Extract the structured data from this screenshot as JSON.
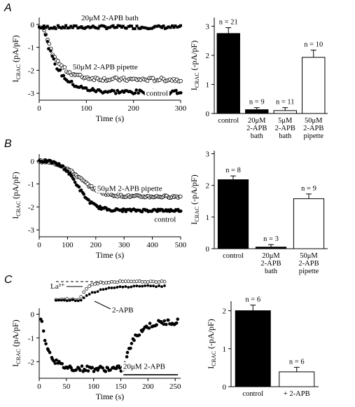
{
  "panels": [
    {
      "letter": "A"
    },
    {
      "letter": "B"
    },
    {
      "letter": "C"
    }
  ],
  "chart_data": [
    {
      "id": "A-trace",
      "type": "scatter",
      "xlabel": "Time (s)",
      "ylabel_main": "I",
      "ylabel_sub": "CRAC",
      "ylabel_unit": " (pA/pF)",
      "xlim": [
        0,
        300
      ],
      "ylim": [
        -3.3,
        0.3
      ],
      "xticks": [
        0,
        100,
        200,
        300
      ],
      "yticks": [
        0,
        -1,
        -2,
        -3
      ],
      "tick_labels_x": [
        "0",
        "100",
        "200",
        "300"
      ],
      "tick_labels_y": [
        "0",
        "-1",
        "-2",
        "-3"
      ],
      "series": [
        {
          "name": "20μM 2-APB bath",
          "marker": "square",
          "model": {
            "kind": "flat",
            "t0": 0,
            "t1": 300,
            "level": -0.12,
            "noise": 0.07,
            "n": 85
          }
        },
        {
          "name": "50μM 2-APB pipette",
          "marker": "open-circle",
          "model": {
            "kind": "exp",
            "t0": 10,
            "t1": 300,
            "start": -0.2,
            "end": -2.4,
            "tau": 28,
            "noise": 0.08,
            "n": 80
          }
        },
        {
          "name": "control",
          "marker": "filled-circle",
          "model": {
            "kind": "exp",
            "t0": 10,
            "t1": 300,
            "start": -0.2,
            "end": -2.95,
            "tau": 30,
            "noise": 0.09,
            "n": 85
          }
        }
      ],
      "annotations": [
        {
          "text": "20μM 2-APB bath",
          "x": 150,
          "y": 0.18
        },
        {
          "text": "50μM 2-APB pipette",
          "x": 140,
          "y": -1.95
        },
        {
          "text": "control",
          "x": 250,
          "y": -3.1
        }
      ]
    },
    {
      "id": "A-bar",
      "type": "bar",
      "ylabel_main": "I",
      "ylabel_sub": "CRAC",
      "ylabel_unit": " (-pA/pF)",
      "ylim": [
        0,
        3.3
      ],
      "yticks": [
        0,
        1,
        2,
        3
      ],
      "tick_labels_y": [
        "0",
        "1",
        "2",
        "3"
      ],
      "categories": [
        "control",
        "20μM 2-APB bath",
        "5μM 2-APB bath",
        "50μM 2-APB pipette"
      ],
      "category_lines": [
        [
          "control"
        ],
        [
          "20μM",
          "2-APB",
          "bath"
        ],
        [
          "5μM",
          "2-APB",
          "bath"
        ],
        [
          "50μM",
          "2-APB",
          "pipette"
        ]
      ],
      "values": [
        2.75,
        0.13,
        0.1,
        1.93
      ],
      "errors": [
        0.2,
        0.07,
        0.1,
        0.25
      ],
      "fills": [
        "#000000",
        "#000000",
        "#ffffff",
        "#ffffff"
      ],
      "n_labels": [
        "n = 21",
        "n = 9",
        "n = 11",
        "n = 10"
      ]
    },
    {
      "id": "B-trace",
      "type": "scatter",
      "xlabel": "Time (s)",
      "ylabel_main": "I",
      "ylabel_sub": "CRAC",
      "ylabel_unit": " (pA/pF)",
      "xlim": [
        0,
        500
      ],
      "ylim": [
        -3.3,
        0.3
      ],
      "xticks": [
        0,
        100,
        200,
        300,
        400,
        500
      ],
      "yticks": [
        0,
        -1,
        -2,
        -3
      ],
      "tick_labels_x": [
        "0",
        "100",
        "200",
        "300",
        "400",
        "500"
      ],
      "tick_labels_y": [
        "0",
        "-1",
        "-2",
        "-3"
      ],
      "series": [
        {
          "name": "50μM 2-APB pipette",
          "marker": "open-circle",
          "model": {
            "kind": "sig",
            "t0": 0,
            "t1": 500,
            "start": 0.03,
            "end": -1.55,
            "mid": 145,
            "k": 38,
            "noise": 0.05,
            "n": 115
          }
        },
        {
          "name": "control",
          "marker": "filled-circle",
          "model": {
            "kind": "sig",
            "t0": 0,
            "t1": 500,
            "start": 0.03,
            "end": -2.15,
            "mid": 135,
            "k": 28,
            "noise": 0.06,
            "n": 115
          }
        }
      ],
      "annotations": [
        {
          "text": "50μM 2-APB pipette",
          "x": 320,
          "y": -1.3
        },
        {
          "text": "control",
          "x": 445,
          "y": -2.65
        }
      ]
    },
    {
      "id": "B-bar",
      "type": "bar",
      "ylabel_main": "I",
      "ylabel_sub": "CRAC",
      "ylabel_unit": " (-pA/pF)",
      "ylim": [
        0,
        3.1
      ],
      "yticks": [
        0,
        1,
        2,
        3
      ],
      "tick_labels_y": [
        "0",
        "1",
        "2",
        "3"
      ],
      "categories": [
        "control",
        "20μM 2-APB bath",
        "50μM 2-APB pipette"
      ],
      "category_lines": [
        [
          "control"
        ],
        [
          "20μM",
          "2-APB",
          "bath"
        ],
        [
          "50μM",
          "2-APB",
          "pipette"
        ]
      ],
      "values": [
        2.18,
        0.05,
        1.58
      ],
      "errors": [
        0.12,
        0.08,
        0.15
      ],
      "fills": [
        "#000000",
        "#000000",
        "#ffffff"
      ],
      "n_labels": [
        "n = 8",
        "n = 3",
        "n = 9"
      ]
    },
    {
      "id": "C-trace",
      "type": "scatter",
      "xlabel": "Time (s)",
      "ylabel_main": "I",
      "ylabel_sub": "CRAC",
      "ylabel_unit": " (pA/pF)",
      "xlim": [
        0,
        260
      ],
      "ylim": [
        -2.7,
        0.25
      ],
      "xticks": [
        0,
        50,
        100,
        150,
        200,
        250
      ],
      "yticks": [
        0,
        -1,
        -2
      ],
      "tick_labels_x": [
        "0",
        "50",
        "100",
        "150",
        "200",
        "250"
      ],
      "tick_labels_y": [
        "0",
        "-1",
        "-2"
      ],
      "series": [
        {
          "name": "2-APB",
          "marker": "filled-circle",
          "model": {
            "kind": "pulse",
            "t0": 3,
            "t1": 255,
            "start": -0.1,
            "low": -2.3,
            "tau": 14,
            "switch": 155,
            "recover": -0.3,
            "tau2": 20,
            "noise": 0.12,
            "n": 105
          }
        }
      ],
      "annotations": [
        {
          "text": "20μM 2-APB",
          "x": 193,
          "y": -2.3
        }
      ],
      "bar_label": "20μM 2-APB",
      "bar_range": [
        155,
        255
      ]
    },
    {
      "id": "C-inset",
      "type": "scatter",
      "series": [
        {
          "name": "La³⁺",
          "marker": "open-circle"
        },
        {
          "name": "2-APB",
          "marker": "filled-circle"
        }
      ],
      "labels": [
        "La³⁺",
        "2-APB"
      ]
    },
    {
      "id": "C-bar",
      "type": "bar",
      "ylabel_main": "I",
      "ylabel_sub": "CRAC",
      "ylabel_unit": " (-pA/pF)",
      "ylim": [
        0,
        2.25
      ],
      "yticks": [
        0,
        1,
        2
      ],
      "tick_labels_y": [
        "0",
        "1",
        "2"
      ],
      "categories": [
        "control",
        "+ 2-APB"
      ],
      "category_lines": [
        [
          "control"
        ],
        [
          "+ 2-APB"
        ]
      ],
      "values": [
        2.0,
        0.39
      ],
      "errors": [
        0.15,
        0.12
      ],
      "fills": [
        "#000000",
        "#ffffff"
      ],
      "n_labels": [
        "n = 6",
        "n = 6"
      ]
    }
  ]
}
